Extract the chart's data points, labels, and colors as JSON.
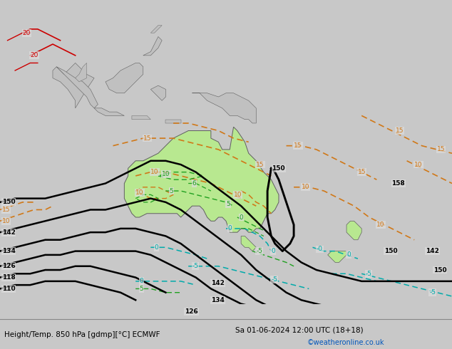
{
  "title_left": "Height/Temp. 850 hPa [gdmp][°C] ECMWF",
  "title_right": "Sa 01-06-2024 12:00 UTC (18+18)",
  "credit": "©weatheronline.co.uk",
  "figsize": [
    6.34,
    4.9
  ],
  "dpi": 100,
  "bg_color": "#c8c8c8",
  "ocean_color": "#dcdcdc",
  "land_color": "#c0c0c0",
  "australia_fill": "#b8e890",
  "australia_edge": "#606060",
  "black_lw": 1.8,
  "orange_color": "#d07818",
  "cyan_color": "#00aaaa",
  "green_color": "#20a020",
  "red_color": "#cc0000",
  "label_fs": 6.5,
  "footer_fs": 7.5,
  "credit_color": "#0055bb"
}
